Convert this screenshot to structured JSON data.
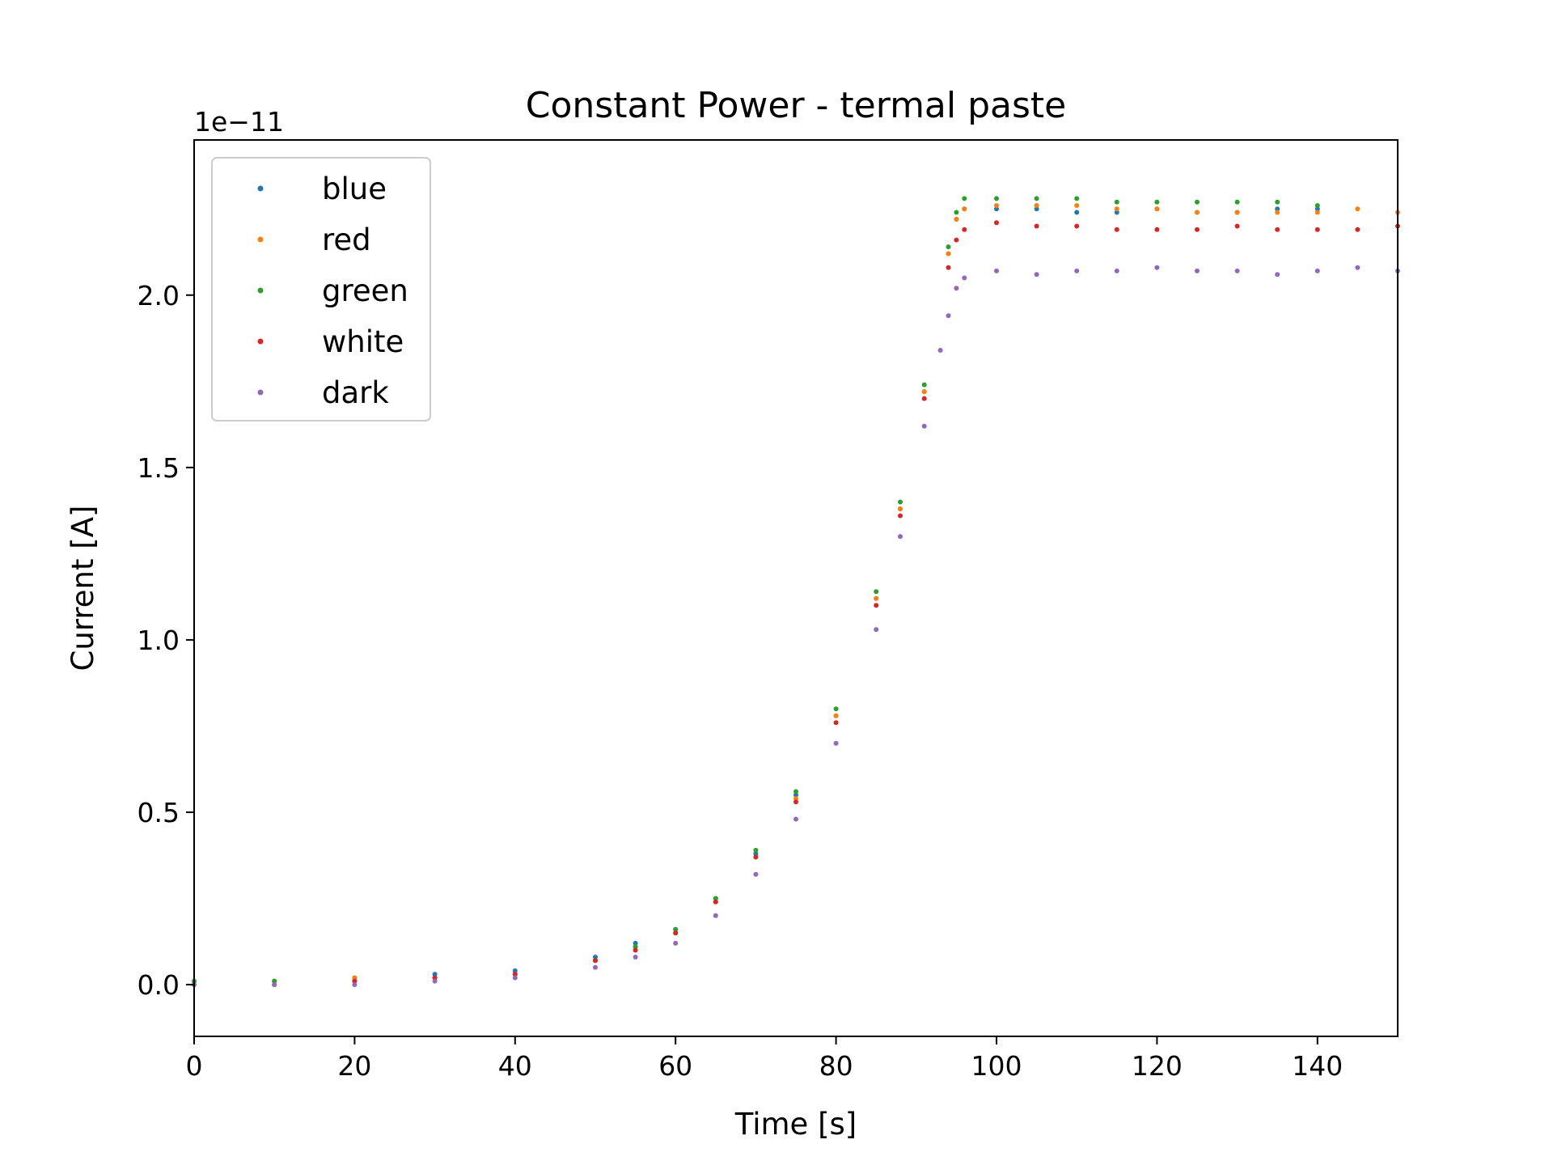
{
  "chart_data": {
    "type": "scatter",
    "title": "Constant Power - termal paste",
    "xlabel": "Time [s]",
    "ylabel": "Current [A]",
    "y_offset_label": "1e−11",
    "xlim": [
      0,
      150
    ],
    "ylim": [
      -0.15,
      2.45
    ],
    "x_ticks": [
      0,
      20,
      40,
      60,
      80,
      100,
      120,
      140
    ],
    "x_tick_labels": [
      "0",
      "20",
      "40",
      "60",
      "80",
      "100",
      "120",
      "140"
    ],
    "y_ticks": [
      0.0,
      0.5,
      1.0,
      1.5,
      2.0
    ],
    "y_tick_labels": [
      "0.0",
      "0.5",
      "1.0",
      "1.5",
      "2.0"
    ],
    "grid": false,
    "legend_position": "top-left",
    "series": [
      {
        "name": "blue",
        "color": "#1f77b4",
        "x": [
          0,
          10,
          20,
          30,
          40,
          50,
          55,
          60,
          65,
          70,
          75,
          80,
          85,
          88,
          91,
          94,
          95,
          96,
          100,
          105,
          110,
          115,
          120,
          125,
          130,
          135,
          140
        ],
        "y": [
          0.01,
          0.01,
          0.02,
          0.03,
          0.04,
          0.08,
          0.12,
          0.16,
          0.25,
          0.38,
          0.55,
          0.78,
          1.12,
          1.38,
          1.72,
          2.12,
          2.22,
          2.25,
          2.25,
          2.25,
          2.24,
          2.24,
          2.25,
          2.24,
          2.24,
          2.25,
          2.25
        ]
      },
      {
        "name": "red",
        "color": "#ff7f0e",
        "x": [
          0,
          10,
          20,
          30,
          40,
          50,
          55,
          60,
          65,
          70,
          75,
          80,
          85,
          88,
          91,
          94,
          95,
          96,
          100,
          105,
          110,
          115,
          120,
          125,
          130,
          135,
          140,
          145,
          150
        ],
        "y": [
          0.01,
          0.01,
          0.02,
          0.02,
          0.03,
          0.07,
          0.11,
          0.15,
          0.24,
          0.37,
          0.54,
          0.78,
          1.12,
          1.38,
          1.72,
          2.12,
          2.22,
          2.25,
          2.26,
          2.26,
          2.26,
          2.25,
          2.25,
          2.24,
          2.24,
          2.24,
          2.24,
          2.25,
          2.24
        ]
      },
      {
        "name": "green",
        "color": "#2ca02c",
        "x": [
          0,
          10,
          20,
          30,
          40,
          50,
          55,
          60,
          65,
          70,
          75,
          80,
          85,
          88,
          91,
          94,
          95,
          96,
          100,
          105,
          110,
          115,
          120,
          125,
          130,
          135,
          140
        ],
        "y": [
          0.01,
          0.01,
          0.01,
          0.02,
          0.03,
          0.07,
          0.11,
          0.16,
          0.25,
          0.39,
          0.56,
          0.8,
          1.14,
          1.4,
          1.74,
          2.14,
          2.24,
          2.28,
          2.28,
          2.28,
          2.28,
          2.27,
          2.27,
          2.27,
          2.27,
          2.27,
          2.26
        ]
      },
      {
        "name": "white",
        "color": "#d62728",
        "x": [
          0,
          10,
          20,
          30,
          40,
          50,
          55,
          60,
          65,
          70,
          75,
          80,
          85,
          88,
          91,
          94,
          95,
          96,
          100,
          105,
          110,
          115,
          120,
          125,
          130,
          135,
          140,
          145,
          150
        ],
        "y": [
          0.0,
          0.0,
          0.01,
          0.02,
          0.03,
          0.07,
          0.1,
          0.15,
          0.24,
          0.37,
          0.53,
          0.76,
          1.1,
          1.36,
          1.7,
          2.08,
          2.16,
          2.19,
          2.21,
          2.2,
          2.2,
          2.19,
          2.19,
          2.19,
          2.2,
          2.19,
          2.19,
          2.19,
          2.2
        ]
      },
      {
        "name": "dark",
        "color": "#9467bd",
        "x": [
          0,
          10,
          20,
          30,
          40,
          50,
          55,
          60,
          65,
          70,
          75,
          80,
          85,
          88,
          91,
          93,
          94,
          95,
          96,
          100,
          105,
          110,
          115,
          120,
          125,
          130,
          135,
          140,
          145,
          150
        ],
        "y": [
          0.0,
          0.0,
          0.0,
          0.01,
          0.02,
          0.05,
          0.08,
          0.12,
          0.2,
          0.32,
          0.48,
          0.7,
          1.03,
          1.3,
          1.62,
          1.84,
          1.94,
          2.02,
          2.05,
          2.07,
          2.06,
          2.07,
          2.07,
          2.08,
          2.07,
          2.07,
          2.06,
          2.07,
          2.08,
          2.07
        ]
      }
    ]
  }
}
